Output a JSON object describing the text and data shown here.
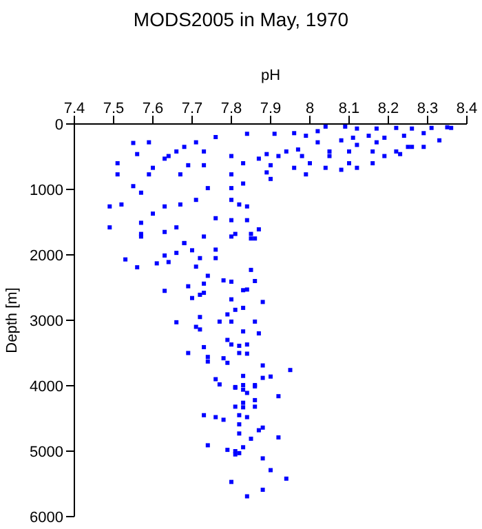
{
  "chart_data": {
    "type": "scatter",
    "title": "MODS2005 in May, 1970",
    "xlabel": "pH",
    "ylabel": "Depth [m]",
    "xlim": [
      7.4,
      8.4
    ],
    "xticks": [
      7.4,
      7.5,
      7.6,
      7.7,
      7.8,
      7.9,
      8,
      8.1,
      8.2,
      8.3,
      8.4
    ],
    "ylim": [
      6000,
      0
    ],
    "yticks": [
      0,
      1000,
      2000,
      3000,
      4000,
      5000,
      6000
    ],
    "marker": "square",
    "series": [
      {
        "color": "#0000ff",
        "x": [
          8.04,
          8.09,
          8.12,
          8.17,
          8.22,
          8.26,
          8.31,
          8.35,
          8.36,
          8.29,
          8.24,
          8.19,
          8.15,
          8.11,
          8.08,
          8.33,
          8.29,
          8.25,
          8.22,
          8.23,
          8.17,
          8.12,
          8.1,
          8.05,
          8.02,
          8.02,
          7.96,
          7.91,
          7.84,
          7.76,
          7.71,
          7.68,
          7.64,
          7.59,
          7.55,
          7.56,
          7.51,
          7.51,
          7.55,
          7.57,
          7.59,
          7.6,
          7.63,
          7.66,
          7.67,
          7.69,
          7.73,
          7.73,
          7.74,
          7.71,
          7.67,
          7.63,
          7.6,
          7.57,
          7.57,
          7.63,
          7.66,
          7.68,
          7.49,
          7.49,
          7.52,
          7.76,
          7.8,
          7.8,
          7.8,
          7.8,
          7.8,
          7.81,
          7.83,
          7.83,
          7.82,
          7.84,
          7.85,
          7.87,
          7.86,
          7.84,
          7.87,
          7.89,
          7.9,
          7.9,
          7.94,
          7.97,
          7.98,
          7.96,
          7.99,
          8,
          8.04,
          8.08,
          8.1,
          8.12,
          8.16,
          8.19,
          8.16,
          8.05,
          8.26,
          7.99,
          7.92,
          7.89,
          7.57,
          7.68,
          7.73,
          7.8,
          7.85,
          7.53,
          7.56,
          7.63,
          7.61,
          7.64,
          7.66,
          7.7,
          7.71,
          7.72,
          7.76,
          7.76,
          7.74,
          7.78,
          7.8,
          7.85,
          7.86,
          7.73,
          7.69,
          7.63,
          7.7,
          7.72,
          7.73,
          7.8,
          7.83,
          7.84,
          7.88,
          7.81,
          7.83,
          7.79,
          7.66,
          7.72,
          7.71,
          7.72,
          7.77,
          7.8,
          7.86,
          7.83,
          7.87,
          7.79,
          7.8,
          7.82,
          7.84,
          7.73,
          7.69,
          7.74,
          7.74,
          7.78,
          7.79,
          7.82,
          7.84,
          7.88,
          7.95,
          7.9,
          7.88,
          7.83,
          7.76,
          7.77,
          7.81,
          7.83,
          7.86,
          7.81,
          7.83,
          7.84,
          7.86,
          7.92,
          7.83,
          7.86,
          7.81,
          7.83,
          7.86,
          7.73,
          7.76,
          7.78,
          7.82,
          7.84,
          7.82,
          7.88,
          7.87,
          7.82,
          7.85,
          7.92,
          7.74,
          7.79,
          7.81,
          7.81,
          7.82,
          7.83,
          7.88,
          7.9,
          7.94,
          7.8,
          7.88,
          7.84
        ],
        "values": [
          40,
          40,
          70,
          70,
          60,
          70,
          60,
          50,
          60,
          140,
          180,
          210,
          180,
          210,
          250,
          250,
          350,
          350,
          420,
          460,
          280,
          320,
          420,
          420,
          280,
          110,
          140,
          150,
          150,
          200,
          280,
          350,
          490,
          280,
          290,
          460,
          600,
          770,
          950,
          1050,
          770,
          670,
          530,
          420,
          770,
          630,
          420,
          630,
          980,
          1160,
          1230,
          1260,
          1370,
          1510,
          1680,
          1650,
          1580,
          1820,
          1260,
          1580,
          1230,
          1440,
          490,
          770,
          980,
          1160,
          1470,
          1680,
          600,
          910,
          1230,
          1470,
          1680,
          1610,
          1750,
          1260,
          530,
          460,
          630,
          840,
          420,
          390,
          490,
          670,
          770,
          600,
          670,
          700,
          600,
          670,
          600,
          490,
          420,
          490,
          350,
          180,
          490,
          740,
          1720,
          1820,
          1720,
          1720,
          1750,
          2070,
          2190,
          2010,
          2130,
          2110,
          1970,
          1930,
          2180,
          2050,
          2050,
          1920,
          2320,
          2390,
          2410,
          2230,
          2400,
          2440,
          2480,
          2550,
          2660,
          2610,
          2580,
          2680,
          2540,
          2530,
          2720,
          2840,
          2810,
          2910,
          3030,
          2950,
          3100,
          3140,
          3020,
          3020,
          3020,
          3170,
          3200,
          3300,
          3370,
          3390,
          3370,
          3410,
          3500,
          3560,
          3630,
          3580,
          3650,
          3500,
          3510,
          3690,
          3760,
          3860,
          3880,
          3850,
          3900,
          3980,
          4020,
          3990,
          3990,
          4030,
          4060,
          4110,
          4010,
          4160,
          4260,
          4220,
          4320,
          4330,
          4320,
          4450,
          4480,
          4520,
          4450,
          4480,
          4590,
          4640,
          4680,
          4730,
          4810,
          4790,
          4910,
          4980,
          5000,
          5050,
          5030,
          4940,
          5110,
          5290,
          5420,
          5470,
          5590,
          5690
        ]
      }
    ]
  }
}
